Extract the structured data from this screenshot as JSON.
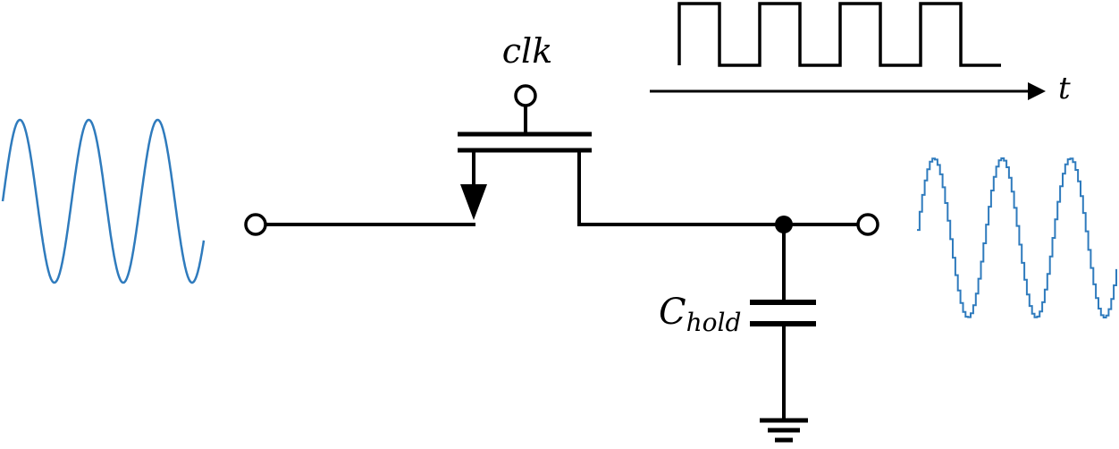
{
  "labels": {
    "clock": "clk",
    "time_axis": "t",
    "capacitor_main": "C",
    "capacitor_sub": "hold"
  },
  "colors": {
    "wire": "#000000",
    "signal": "#2f7bbd",
    "background": "#ffffff"
  },
  "signals": {
    "input_cycles": 3,
    "output_cycles": 3,
    "output_steps_per_cycle": 26,
    "clock_pulses": 4
  }
}
